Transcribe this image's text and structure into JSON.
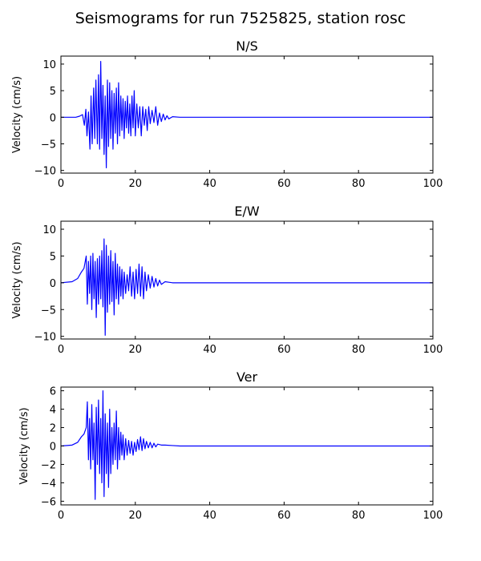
{
  "figure_title": "Seismograms for run 7525825, station rosc",
  "chart_data": [
    {
      "type": "line",
      "title": "N/S",
      "xlabel": "",
      "ylabel": "Velocity (cm/s)",
      "xlim": [
        0,
        100
      ],
      "ylim": [
        -10.5,
        11.5
      ],
      "xticks": [
        0,
        20,
        40,
        60,
        80,
        100
      ],
      "yticks": [
        -10,
        -5,
        0,
        5,
        10
      ],
      "color": "#0000ff",
      "grid": false,
      "series": [
        {
          "x": [
            0,
            4,
            5,
            5.8,
            6.3,
            6.7,
            7.0,
            7.4,
            7.8,
            8.1,
            8.4,
            8.8,
            9.1,
            9.4,
            9.8,
            10.1,
            10.4,
            10.7,
            11.0,
            11.3,
            11.6,
            11.9,
            12.2,
            12.5,
            12.8,
            13.1,
            13.4,
            13.7,
            14.0,
            14.3,
            14.6,
            14.9,
            15.2,
            15.5,
            15.8,
            16.1,
            16.4,
            16.7,
            17.0,
            17.3,
            17.6,
            17.9,
            18.2,
            18.5,
            18.8,
            19.1,
            19.4,
            19.7,
            20.0,
            20.4,
            20.8,
            21.2,
            21.6,
            22.0,
            22.4,
            22.8,
            23.2,
            23.6,
            24.0,
            24.5,
            25.0,
            25.5,
            26.0,
            26.5,
            27.0,
            27.5,
            28.0,
            28.5,
            29.0,
            30,
            32,
            35,
            40,
            50,
            60,
            70,
            80,
            90,
            100
          ],
          "y": [
            0,
            0,
            0.2,
            0.5,
            -1.5,
            1.5,
            -3.5,
            1.0,
            -6.0,
            4.0,
            -5.0,
            5.5,
            -4.0,
            7.0,
            -5.0,
            8.0,
            -6.0,
            10.5,
            -4.0,
            6.0,
            -7.0,
            4.0,
            -9.5,
            7.0,
            -5.5,
            6.5,
            -4.0,
            5.0,
            -6.0,
            4.5,
            -3.0,
            5.5,
            -5.0,
            6.5,
            -3.5,
            4.0,
            -2.5,
            3.5,
            -4.0,
            3.0,
            -2.0,
            4.0,
            -3.0,
            2.5,
            -3.5,
            4.0,
            -2.0,
            5.0,
            -3.5,
            2.5,
            -2.0,
            2.0,
            -3.5,
            2.0,
            -1.5,
            1.5,
            -2.5,
            2.0,
            -1.2,
            1.3,
            -1.0,
            2.0,
            -1.5,
            0.8,
            -0.8,
            0.6,
            -0.5,
            0.3,
            -0.3,
            0.1,
            0,
            0,
            0,
            0,
            0,
            0,
            0,
            0,
            0
          ]
        }
      ]
    },
    {
      "type": "line",
      "title": "E/W",
      "xlabel": "",
      "ylabel": "Velocity (cm/s)",
      "xlim": [
        0,
        100
      ],
      "ylim": [
        -10.5,
        11.5
      ],
      "xticks": [
        0,
        20,
        40,
        60,
        80,
        100
      ],
      "yticks": [
        -10,
        -5,
        0,
        5,
        10
      ],
      "color": "#0000ff",
      "grid": false,
      "series": [
        {
          "x": [
            0,
            3,
            4.5,
            5.5,
            6.2,
            6.8,
            7.1,
            7.4,
            7.7,
            8.0,
            8.3,
            8.6,
            8.9,
            9.2,
            9.5,
            9.8,
            10.1,
            10.4,
            10.7,
            11.0,
            11.3,
            11.6,
            11.9,
            12.2,
            12.5,
            12.8,
            13.1,
            13.4,
            13.7,
            14.0,
            14.3,
            14.6,
            14.9,
            15.2,
            15.5,
            15.8,
            16.1,
            16.4,
            16.7,
            17.0,
            17.4,
            17.8,
            18.2,
            18.6,
            19.0,
            19.4,
            19.8,
            20.2,
            20.6,
            21.0,
            21.4,
            21.8,
            22.2,
            22.6,
            23.0,
            23.5,
            24.0,
            24.5,
            25.0,
            25.5,
            26.0,
            26.5,
            27.0,
            28.0,
            29.0,
            30,
            32,
            35,
            40,
            50,
            60,
            70,
            80,
            90,
            100
          ],
          "y": [
            0,
            0.2,
            0.8,
            2.0,
            2.7,
            5.0,
            -4.0,
            4.0,
            -2.0,
            5.0,
            -5.0,
            5.5,
            -3.0,
            4.0,
            -6.5,
            4.5,
            -4.0,
            5.0,
            -3.0,
            6.0,
            -4.5,
            8.2,
            -9.8,
            7.0,
            -5.5,
            5.0,
            -4.0,
            6.0,
            -3.5,
            4.0,
            -6.0,
            5.5,
            -3.0,
            3.5,
            -4.0,
            3.0,
            -2.5,
            2.5,
            -3.0,
            2.0,
            -2.0,
            1.5,
            -1.5,
            3.0,
            -2.5,
            2.0,
            -3.0,
            2.5,
            -2.0,
            3.5,
            -2.5,
            3.0,
            -3.0,
            2.0,
            -1.5,
            1.5,
            -1.0,
            1.2,
            -0.8,
            0.8,
            -0.6,
            0.5,
            -0.3,
            0.2,
            0.1,
            0,
            0,
            0,
            0,
            0,
            0,
            0,
            0,
            0,
            0
          ]
        }
      ]
    },
    {
      "type": "line",
      "title": "Ver",
      "xlabel": "",
      "ylabel": "Velocity (cm/s)",
      "xlim": [
        0,
        100
      ],
      "ylim": [
        -6.4,
        6.4
      ],
      "xticks": [
        0,
        20,
        40,
        60,
        80,
        100
      ],
      "yticks": [
        -6,
        -4,
        -2,
        0,
        2,
        4,
        6
      ],
      "color": "#0000ff",
      "grid": false,
      "series": [
        {
          "x": [
            0,
            3,
            4.5,
            5.5,
            6.2,
            6.8,
            7.1,
            7.4,
            7.7,
            8.0,
            8.3,
            8.6,
            8.9,
            9.2,
            9.5,
            9.8,
            10.1,
            10.4,
            10.7,
            11.0,
            11.3,
            11.6,
            11.9,
            12.2,
            12.5,
            12.8,
            13.1,
            13.4,
            13.7,
            14.0,
            14.3,
            14.6,
            14.9,
            15.2,
            15.5,
            15.8,
            16.1,
            16.4,
            16.7,
            17.0,
            17.4,
            17.8,
            18.2,
            18.6,
            19.0,
            19.4,
            19.8,
            20.2,
            20.6,
            21.0,
            21.4,
            21.8,
            22.2,
            22.6,
            23.0,
            23.5,
            24.0,
            24.5,
            25.0,
            25.5,
            26.0,
            27.0,
            28.0,
            30,
            32,
            35,
            40,
            50,
            60,
            70,
            80,
            90,
            100
          ],
          "y": [
            0,
            0.1,
            0.4,
            1.0,
            1.3,
            2.0,
            4.8,
            -1.5,
            3.0,
            -2.5,
            4.5,
            -1.5,
            2.5,
            -5.8,
            4.2,
            -2.0,
            5.0,
            -3.0,
            3.0,
            -4.0,
            6.0,
            -5.5,
            3.5,
            -3.0,
            2.5,
            -4.5,
            4.0,
            -3.0,
            2.0,
            -2.0,
            2.5,
            -1.5,
            3.8,
            -2.5,
            2.0,
            -1.5,
            1.5,
            -1.0,
            1.2,
            -1.5,
            0.8,
            -1.0,
            0.6,
            -0.8,
            0.5,
            -1.0,
            0.4,
            -0.6,
            0.7,
            -0.4,
            1.0,
            -0.5,
            0.8,
            -0.3,
            0.5,
            -0.2,
            0.4,
            -0.2,
            0.3,
            -0.1,
            0.2,
            0.1,
            0.1,
            0.05,
            0,
            0,
            0,
            0,
            0,
            0,
            0,
            0,
            0
          ]
        }
      ]
    }
  ]
}
